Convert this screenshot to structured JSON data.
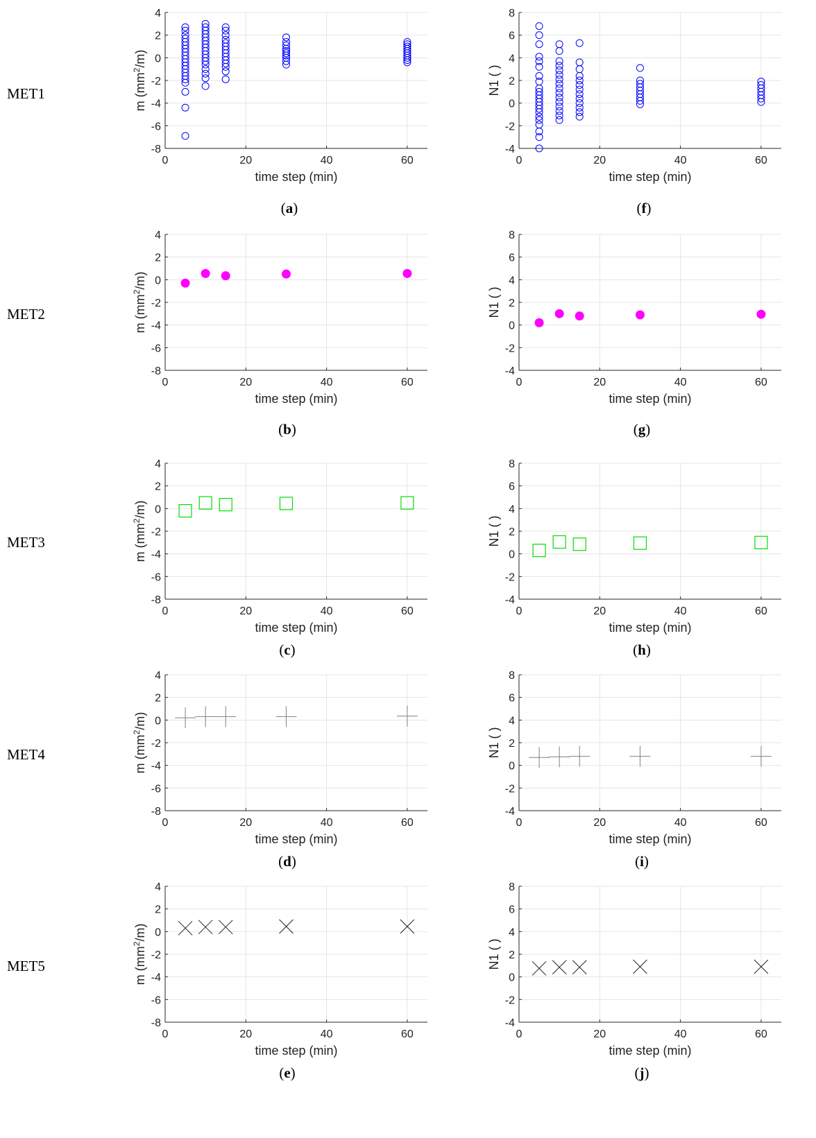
{
  "rows": [
    {
      "label": "MET1",
      "captions": [
        "a",
        "f"
      ]
    },
    {
      "label": "MET2",
      "captions": [
        "b",
        "g"
      ]
    },
    {
      "label": "MET3",
      "captions": [
        "c",
        "h"
      ]
    },
    {
      "label": "MET4",
      "captions": [
        "d",
        "i"
      ]
    },
    {
      "label": "MET5",
      "captions": [
        "e",
        "j"
      ]
    }
  ],
  "colors": {
    "met1": "#0000ff",
    "met2": "#ff00ff",
    "met3": "#00dd00",
    "met4": "#808080",
    "met5": "#222222",
    "grid": "#e5e5e5",
    "axis": "#262626"
  },
  "chart_data": [
    {
      "id": "a",
      "type": "scatter",
      "marker": "open-circle",
      "color": "#0000ff",
      "xlabel": "time step (min)",
      "ylabel": "m (mm²/m)",
      "ylabel_base": "m (mm",
      "ylabel_sup": "2",
      "ylabel_tail": "/m)",
      "xlim": [
        0,
        65
      ],
      "ylim": [
        -8,
        4
      ],
      "xticks": [
        0,
        20,
        40,
        60
      ],
      "yticks": [
        -8,
        -6,
        -4,
        -2,
        0,
        2,
        4
      ],
      "grid": true,
      "points": [
        {
          "x": 5,
          "ys": [
            -6.9,
            -4.4,
            -3.0,
            -2.2,
            -1.9,
            -1.6,
            -1.3,
            -1.0,
            -0.7,
            -0.4,
            -0.1,
            0.2,
            0.5,
            0.8,
            1.1,
            1.4,
            1.7,
            2.0,
            2.4,
            2.7
          ]
        },
        {
          "x": 10,
          "ys": [
            -2.5,
            -1.8,
            -1.4,
            -1.0,
            -0.6,
            -0.3,
            0.0,
            0.3,
            0.6,
            0.9,
            1.2,
            1.5,
            1.8,
            2.1,
            2.4,
            2.7,
            3.0
          ]
        },
        {
          "x": 15,
          "ys": [
            -1.9,
            -1.2,
            -0.8,
            -0.5,
            -0.2,
            0.1,
            0.4,
            0.7,
            1.0,
            1.3,
            1.6,
            2.0,
            2.4,
            2.7
          ]
        },
        {
          "x": 30,
          "ys": [
            -0.6,
            -0.3,
            0.0,
            0.2,
            0.4,
            0.6,
            0.8,
            1.1,
            1.4,
            1.8
          ]
        },
        {
          "x": 60,
          "ys": [
            -0.4,
            -0.2,
            0.0,
            0.2,
            0.4,
            0.6,
            0.8,
            1.0,
            1.2,
            1.4
          ]
        }
      ]
    },
    {
      "id": "f",
      "type": "scatter",
      "marker": "open-circle",
      "color": "#0000ff",
      "xlabel": "time step (min)",
      "ylabel": "N1 ( )",
      "xlim": [
        0,
        65
      ],
      "ylim": [
        -4,
        8
      ],
      "xticks": [
        0,
        20,
        40,
        60
      ],
      "yticks": [
        -4,
        -2,
        0,
        2,
        4,
        6,
        8
      ],
      "grid": true,
      "points": [
        {
          "x": 5,
          "ys": [
            -4.0,
            -3.0,
            -2.5,
            -1.9,
            -1.5,
            -1.2,
            -0.8,
            -0.5,
            -0.2,
            0.1,
            0.4,
            0.7,
            1.0,
            1.3,
            1.9,
            2.4,
            3.2,
            3.7,
            4.1,
            5.2,
            6.0,
            6.8
          ]
        },
        {
          "x": 10,
          "ys": [
            -1.5,
            -1.1,
            -0.7,
            -0.3,
            0.1,
            0.5,
            0.9,
            1.3,
            1.7,
            2.1,
            2.5,
            2.9,
            3.3,
            3.7,
            4.6,
            5.2
          ]
        },
        {
          "x": 15,
          "ys": [
            -1.2,
            -0.8,
            -0.4,
            0.0,
            0.4,
            0.8,
            1.2,
            1.6,
            2.0,
            2.4,
            3.0,
            3.6,
            5.3
          ]
        },
        {
          "x": 30,
          "ys": [
            -0.1,
            0.2,
            0.5,
            0.8,
            1.1,
            1.4,
            1.7,
            2.0,
            3.1
          ]
        },
        {
          "x": 60,
          "ys": [
            0.1,
            0.4,
            0.7,
            1.0,
            1.3,
            1.6,
            1.9
          ]
        }
      ]
    },
    {
      "id": "b",
      "type": "scatter",
      "marker": "filled-circle",
      "color": "#ff00ff",
      "xlabel": "time step (min)",
      "ylabel": "m (mm²/m)",
      "ylabel_base": "m (mm",
      "ylabel_sup": "2",
      "ylabel_tail": "/m)",
      "xlim": [
        0,
        65
      ],
      "ylim": [
        -8,
        4
      ],
      "xticks": [
        0,
        20,
        40,
        60
      ],
      "yticks": [
        -8,
        -6,
        -4,
        -2,
        0,
        2,
        4
      ],
      "grid": true,
      "points": [
        {
          "x": 5,
          "y": -0.3
        },
        {
          "x": 10,
          "y": 0.55
        },
        {
          "x": 15,
          "y": 0.35
        },
        {
          "x": 30,
          "y": 0.5
        },
        {
          "x": 60,
          "y": 0.55
        }
      ]
    },
    {
      "id": "g",
      "type": "scatter",
      "marker": "filled-circle",
      "color": "#ff00ff",
      "xlabel": "time step (min)",
      "ylabel": "N1 ( )",
      "xlim": [
        0,
        65
      ],
      "ylim": [
        -4,
        8
      ],
      "xticks": [
        0,
        20,
        40,
        60
      ],
      "yticks": [
        -4,
        -2,
        0,
        2,
        4,
        6,
        8
      ],
      "grid": true,
      "points": [
        {
          "x": 5,
          "y": 0.2
        },
        {
          "x": 10,
          "y": 1.0
        },
        {
          "x": 15,
          "y": 0.8
        },
        {
          "x": 30,
          "y": 0.9
        },
        {
          "x": 60,
          "y": 0.95
        }
      ]
    },
    {
      "id": "c",
      "type": "scatter",
      "marker": "open-square",
      "color": "#00dd00",
      "xlabel": "time step (min)",
      "ylabel": "m (mm²/m)",
      "ylabel_base": "m (mm",
      "ylabel_sup": "2",
      "ylabel_tail": "/m)",
      "xlim": [
        0,
        65
      ],
      "ylim": [
        -8,
        4
      ],
      "xticks": [
        0,
        20,
        40,
        60
      ],
      "yticks": [
        -8,
        -6,
        -4,
        -2,
        0,
        2,
        4
      ],
      "grid": true,
      "points": [
        {
          "x": 5,
          "y": -0.2
        },
        {
          "x": 10,
          "y": 0.5
        },
        {
          "x": 15,
          "y": 0.35
        },
        {
          "x": 30,
          "y": 0.45
        },
        {
          "x": 60,
          "y": 0.5
        }
      ]
    },
    {
      "id": "h",
      "type": "scatter",
      "marker": "open-square",
      "color": "#00dd00",
      "xlabel": "time step (min)",
      "ylabel": "N1 ( )",
      "xlim": [
        0,
        65
      ],
      "ylim": [
        -4,
        8
      ],
      "xticks": [
        0,
        20,
        40,
        60
      ],
      "yticks": [
        -4,
        -2,
        0,
        2,
        4,
        6,
        8
      ],
      "grid": true,
      "points": [
        {
          "x": 5,
          "y": 0.3
        },
        {
          "x": 10,
          "y": 1.05
        },
        {
          "x": 15,
          "y": 0.85
        },
        {
          "x": 30,
          "y": 0.95
        },
        {
          "x": 60,
          "y": 1.0
        }
      ]
    },
    {
      "id": "d",
      "type": "scatter",
      "marker": "plus",
      "color": "#808080",
      "xlabel": "time step (min)",
      "ylabel": "m (mm²/m)",
      "ylabel_base": "m (mm",
      "ylabel_sup": "2",
      "ylabel_tail": "/m)",
      "xlim": [
        0,
        65
      ],
      "ylim": [
        -8,
        4
      ],
      "xticks": [
        0,
        20,
        40,
        60
      ],
      "yticks": [
        -8,
        -6,
        -4,
        -2,
        0,
        2,
        4
      ],
      "grid": true,
      "points": [
        {
          "x": 5,
          "y": 0.2
        },
        {
          "x": 10,
          "y": 0.3
        },
        {
          "x": 15,
          "y": 0.3
        },
        {
          "x": 30,
          "y": 0.3
        },
        {
          "x": 60,
          "y": 0.35
        }
      ]
    },
    {
      "id": "i",
      "type": "scatter",
      "marker": "plus",
      "color": "#808080",
      "xlabel": "time step (min)",
      "ylabel": "N1 ( )",
      "xlim": [
        0,
        65
      ],
      "ylim": [
        -4,
        8
      ],
      "xticks": [
        0,
        20,
        40,
        60
      ],
      "yticks": [
        -4,
        -2,
        0,
        2,
        4,
        6,
        8
      ],
      "grid": true,
      "points": [
        {
          "x": 5,
          "y": 0.7
        },
        {
          "x": 10,
          "y": 0.75
        },
        {
          "x": 15,
          "y": 0.8
        },
        {
          "x": 30,
          "y": 0.8
        },
        {
          "x": 60,
          "y": 0.8
        }
      ]
    },
    {
      "id": "e",
      "type": "scatter",
      "marker": "cross",
      "color": "#222222",
      "xlabel": "time step (min)",
      "ylabel": "m (mm²/m)",
      "ylabel_base": "m (mm",
      "ylabel_sup": "2",
      "ylabel_tail": "/m)",
      "xlim": [
        0,
        65
      ],
      "ylim": [
        -8,
        4
      ],
      "xticks": [
        0,
        20,
        40,
        60
      ],
      "yticks": [
        -8,
        -6,
        -4,
        -2,
        0,
        2,
        4
      ],
      "grid": true,
      "points": [
        {
          "x": 5,
          "y": 0.3
        },
        {
          "x": 10,
          "y": 0.4
        },
        {
          "x": 15,
          "y": 0.4
        },
        {
          "x": 30,
          "y": 0.45
        },
        {
          "x": 60,
          "y": 0.45
        }
      ]
    },
    {
      "id": "j",
      "type": "scatter",
      "marker": "cross",
      "color": "#222222",
      "xlabel": "time step (min)",
      "ylabel": "N1 ( )",
      "xlim": [
        0,
        65
      ],
      "ylim": [
        -4,
        8
      ],
      "xticks": [
        0,
        20,
        40,
        60
      ],
      "yticks": [
        -4,
        -2,
        0,
        2,
        4,
        6,
        8
      ],
      "grid": true,
      "points": [
        {
          "x": 5,
          "y": 0.75
        },
        {
          "x": 10,
          "y": 0.85
        },
        {
          "x": 15,
          "y": 0.85
        },
        {
          "x": 30,
          "y": 0.9
        },
        {
          "x": 60,
          "y": 0.9
        }
      ]
    }
  ]
}
